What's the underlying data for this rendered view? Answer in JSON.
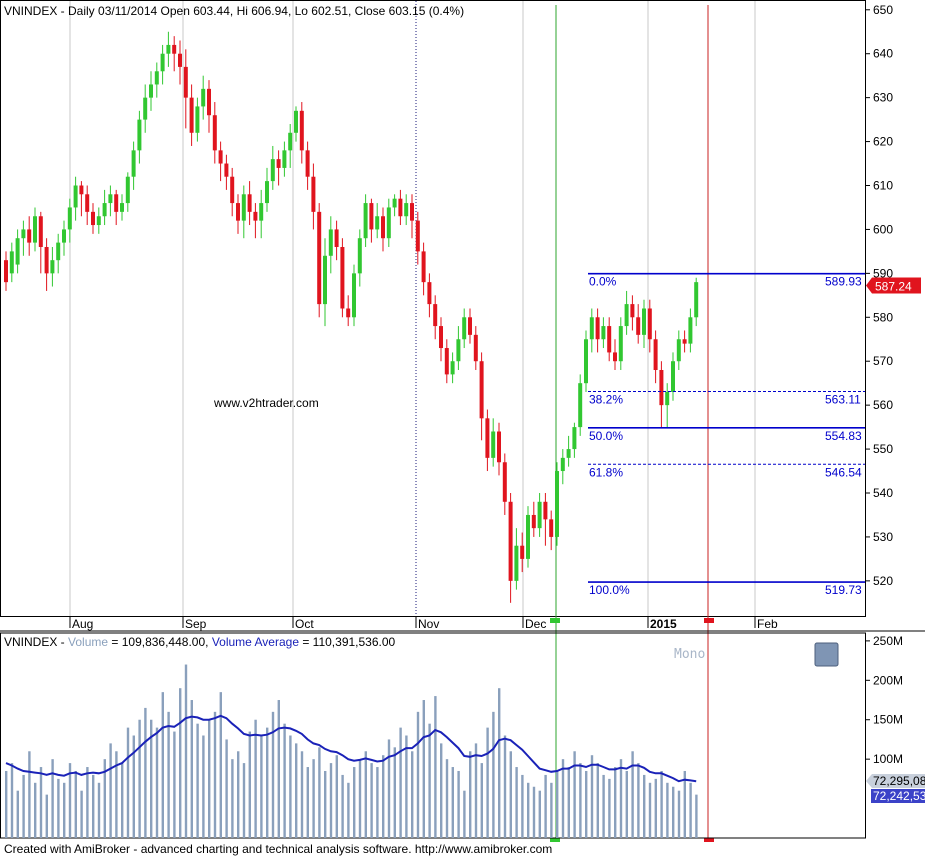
{
  "chart_data": {
    "type": "candlestick",
    "title": "VNINDEX - Daily 03/11/2014 Open 603.44, Hi 606.94, Lo 602.51, Close 603.15 (0.4%)",
    "price_axis": {
      "ylim": [
        512,
        652
      ],
      "ticks": [
        "650",
        "640",
        "630",
        "620",
        "610",
        "600",
        "590",
        "580",
        "570",
        "560",
        "550",
        "540",
        "530",
        "520"
      ]
    },
    "x_labels": [
      "Aug",
      "Sep",
      "Oct",
      "Nov",
      "Dec",
      "2015",
      "Feb"
    ],
    "last_price": "587.24",
    "watermark": "www.v2htrader.com",
    "fibonacci": [
      {
        "pct": "0.0%",
        "value": "589.93",
        "price": 589.93,
        "style": "solid"
      },
      {
        "pct": "38.2%",
        "value": "563.11",
        "price": 563.11,
        "style": "dashed"
      },
      {
        "pct": "50.0%",
        "value": "554.83",
        "price": 554.83,
        "style": "solid"
      },
      {
        "pct": "61.8%",
        "value": "546.54",
        "price": 546.54,
        "style": "dashed"
      },
      {
        "pct": "100.0%",
        "value": "519.73",
        "price": 519.73,
        "style": "solid"
      }
    ],
    "candles": [
      [
        593,
        588,
        595,
        586
      ],
      [
        590,
        595,
        597,
        588
      ],
      [
        592,
        598,
        600,
        590
      ],
      [
        598,
        600,
        602,
        594
      ],
      [
        600,
        597,
        603,
        594
      ],
      [
        597,
        603,
        605,
        595
      ],
      [
        603,
        596,
        604,
        590
      ],
      [
        596,
        590,
        598,
        586
      ],
      [
        590,
        593,
        596,
        587
      ],
      [
        593,
        597,
        599,
        590
      ],
      [
        597,
        600,
        602,
        594
      ],
      [
        600,
        605,
        607,
        597
      ],
      [
        605,
        610,
        612,
        602
      ],
      [
        610,
        608,
        611,
        603
      ],
      [
        608,
        604,
        610,
        601
      ],
      [
        604,
        601,
        606,
        599
      ],
      [
        601,
        603,
        605,
        599
      ],
      [
        603,
        606,
        609,
        601
      ],
      [
        606,
        608,
        610,
        603
      ],
      [
        608,
        604,
        609,
        601
      ],
      [
        604,
        606,
        608,
        602
      ],
      [
        606,
        612,
        613,
        604
      ],
      [
        612,
        618,
        620,
        609
      ],
      [
        618,
        625,
        627,
        615
      ],
      [
        625,
        630,
        633,
        622
      ],
      [
        630,
        633,
        636,
        627
      ],
      [
        633,
        636,
        638,
        630
      ],
      [
        636,
        640,
        642,
        633
      ],
      [
        640,
        642,
        645,
        637
      ],
      [
        642,
        640,
        644,
        636
      ],
      [
        640,
        637,
        643,
        633
      ],
      [
        637,
        630,
        641,
        623
      ],
      [
        630,
        622,
        633,
        619
      ],
      [
        622,
        628,
        630,
        620
      ],
      [
        628,
        632,
        635,
        625
      ],
      [
        632,
        626,
        634,
        622
      ],
      [
        626,
        618,
        629,
        615
      ],
      [
        618,
        615,
        620,
        611
      ],
      [
        615,
        612,
        617,
        609
      ],
      [
        612,
        606,
        614,
        603
      ],
      [
        606,
        602,
        608,
        599
      ],
      [
        602,
        608,
        610,
        598
      ],
      [
        608,
        604,
        611,
        601
      ],
      [
        604,
        602,
        606,
        598
      ],
      [
        602,
        606,
        609,
        598
      ],
      [
        606,
        611,
        614,
        604
      ],
      [
        611,
        616,
        619,
        609
      ],
      [
        616,
        614,
        618,
        610
      ],
      [
        614,
        618,
        620,
        612
      ],
      [
        618,
        622,
        624,
        614
      ],
      [
        622,
        627,
        628,
        620
      ],
      [
        627,
        618,
        629,
        615
      ],
      [
        618,
        612,
        620,
        609
      ],
      [
        612,
        604,
        615,
        600
      ],
      [
        604,
        583,
        606,
        580
      ],
      [
        583,
        594,
        598,
        578
      ],
      [
        594,
        600,
        603,
        590
      ],
      [
        600,
        596,
        602,
        593
      ],
      [
        596,
        582,
        598,
        580
      ],
      [
        582,
        580,
        585,
        578
      ],
      [
        580,
        590,
        592,
        578
      ],
      [
        590,
        598,
        600,
        587
      ],
      [
        598,
        606,
        608,
        596
      ],
      [
        606,
        600,
        607,
        597
      ],
      [
        600,
        603,
        606,
        598
      ],
      [
        603,
        598,
        605,
        595
      ],
      [
        598,
        605,
        607,
        596
      ],
      [
        605,
        607,
        608,
        603
      ],
      [
        607,
        603,
        609,
        601
      ],
      [
        603,
        606,
        608,
        601
      ],
      [
        606,
        602,
        608,
        598
      ],
      [
        602,
        595,
        604,
        592
      ],
      [
        595,
        588,
        597,
        585
      ],
      [
        588,
        583,
        590,
        580
      ],
      [
        583,
        578,
        585,
        575
      ],
      [
        578,
        573,
        580,
        570
      ],
      [
        573,
        567,
        575,
        565
      ],
      [
        567,
        570,
        572,
        565
      ],
      [
        570,
        575,
        578,
        568
      ],
      [
        575,
        580,
        582,
        573
      ],
      [
        580,
        576,
        582,
        574
      ],
      [
        576,
        570,
        578,
        568
      ],
      [
        570,
        557,
        572,
        552
      ],
      [
        557,
        548,
        559,
        545
      ],
      [
        548,
        554,
        557,
        546
      ],
      [
        554,
        547,
        556,
        544
      ],
      [
        547,
        538,
        549,
        535
      ],
      [
        538,
        520,
        540,
        515
      ],
      [
        520,
        528,
        532,
        518
      ],
      [
        528,
        525,
        531,
        522
      ],
      [
        525,
        535,
        537,
        523
      ],
      [
        535,
        532,
        538,
        530
      ],
      [
        532,
        538,
        540,
        530
      ],
      [
        538,
        534,
        540,
        528
      ],
      [
        534,
        530,
        536,
        527
      ],
      [
        530,
        545,
        547,
        528
      ],
      [
        545,
        548,
        550,
        542
      ],
      [
        548,
        550,
        553,
        546
      ],
      [
        550,
        555,
        556,
        548
      ],
      [
        555,
        565,
        567,
        553
      ],
      [
        565,
        575,
        577,
        563
      ],
      [
        575,
        580,
        582,
        572
      ],
      [
        580,
        575,
        582,
        572
      ],
      [
        575,
        578,
        580,
        573
      ],
      [
        578,
        572,
        580,
        570
      ],
      [
        572,
        570,
        575,
        568
      ],
      [
        570,
        578,
        580,
        568
      ],
      [
        578,
        583,
        586,
        576
      ],
      [
        583,
        580,
        585,
        577
      ],
      [
        580,
        576,
        583,
        574
      ],
      [
        576,
        582,
        584,
        573
      ],
      [
        582,
        575,
        584,
        572
      ],
      [
        575,
        568,
        577,
        565
      ],
      [
        568,
        560,
        570,
        555
      ],
      [
        560,
        563,
        565,
        555
      ],
      [
        563,
        570,
        572,
        561
      ],
      [
        570,
        575,
        577,
        568
      ],
      [
        575,
        574,
        577,
        572
      ],
      [
        574,
        580,
        582,
        572
      ],
      [
        580,
        588,
        589,
        578
      ]
    ],
    "volume_panel": {
      "title_prefix": "VNINDEX - ",
      "volume_label": "Volume",
      "volume_value": " = 109,836,448.00, ",
      "avg_label": "Volume Average",
      "avg_value": " = 110,391,536.00",
      "ylim": [
        0,
        260
      ],
      "ticks": [
        "250M",
        "200M",
        "150M",
        "100M"
      ],
      "last_volume": "72,295,08",
      "last_average": "72,242,53",
      "mono_label": "Mono",
      "volumes": [
        85,
        95,
        60,
        80,
        110,
        70,
        90,
        55,
        100,
        75,
        70,
        95,
        85,
        60,
        90,
        80,
        70,
        100,
        120,
        110,
        95,
        140,
        130,
        150,
        165,
        150,
        140,
        185,
        160,
        135,
        190,
        220,
        175,
        145,
        130,
        150,
        160,
        185,
        125,
        100,
        110,
        95,
        135,
        150,
        130,
        140,
        160,
        175,
        145,
        130,
        120,
        110,
        90,
        100,
        115,
        85,
        95,
        105,
        80,
        70,
        90,
        100,
        110,
        95,
        90,
        105,
        125,
        115,
        140,
        130,
        110,
        160,
        175,
        145,
        180,
        120,
        100,
        90,
        85,
        60,
        110,
        120,
        95,
        140,
        160,
        190,
        130,
        110,
        90,
        80,
        70,
        65,
        60,
        80,
        70,
        85,
        100,
        90,
        110,
        95,
        85,
        105,
        95,
        80,
        75,
        90,
        100,
        85,
        110,
        95,
        80,
        70,
        75,
        85,
        70,
        65,
        60,
        85,
        70,
        55
      ],
      "averages": [
        95,
        92,
        88,
        85,
        84,
        83,
        82,
        80,
        82,
        80,
        79,
        82,
        83,
        80,
        82,
        83,
        82,
        84,
        88,
        92,
        95,
        102,
        108,
        115,
        122,
        128,
        133,
        140,
        142,
        141,
        146,
        152,
        154,
        153,
        150,
        150,
        152,
        155,
        152,
        145,
        139,
        132,
        130,
        131,
        130,
        131,
        134,
        139,
        140,
        139,
        136,
        132,
        125,
        120,
        118,
        113,
        110,
        109,
        105,
        100,
        98,
        99,
        101,
        99,
        97,
        98,
        103,
        105,
        110,
        114,
        114,
        120,
        128,
        130,
        137,
        134,
        128,
        121,
        114,
        104,
        103,
        105,
        104,
        107,
        113,
        124,
        126,
        124,
        118,
        112,
        104,
        96,
        88,
        86,
        84,
        85,
        88,
        88,
        92,
        92,
        90,
        93,
        93,
        90,
        87,
        87,
        89,
        88,
        92,
        92,
        89,
        84,
        82,
        82,
        79,
        76,
        72,
        74,
        73,
        72
      ]
    },
    "vertical_markers": [
      "green-line",
      "dotted-line",
      "red-line"
    ]
  },
  "colors": {
    "up": "#31c731",
    "down": "#e0141e",
    "fib": "#0000cc",
    "volume_bar": "#8aa0bc",
    "volume_avg": "#1a22b8",
    "price_badge": "#e0141e",
    "volume_badge": "#3b42c8"
  },
  "footer": "Created with AmiBroker - advanced charting and technical analysis software. http://www.amibroker.com"
}
